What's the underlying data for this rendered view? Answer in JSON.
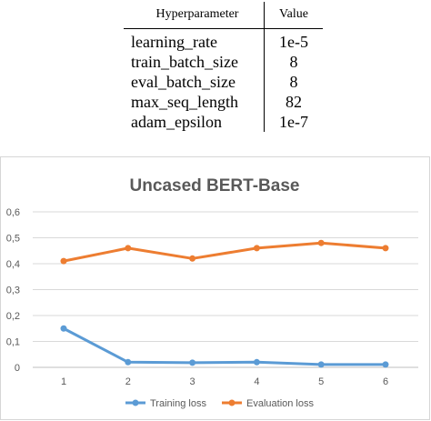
{
  "table": {
    "headers": [
      "Hyperparameter",
      "Value"
    ],
    "rows": [
      {
        "name": "learning_rate",
        "value": "1e-5"
      },
      {
        "name": "train_batch_size",
        "value": "8"
      },
      {
        "name": "eval_batch_size",
        "value": "8"
      },
      {
        "name": "max_seq_length",
        "value": "82"
      },
      {
        "name": "adam_epsilon",
        "value": "1e-7"
      }
    ]
  },
  "chart_data": {
    "type": "line",
    "title": "Uncased BERT-Base",
    "xlabel": "",
    "ylabel": "",
    "x": [
      1,
      2,
      3,
      4,
      5,
      6
    ],
    "x_tick_labels": [
      "1",
      "2",
      "3",
      "4",
      "5",
      "6"
    ],
    "y_tick_labels": [
      "0",
      "0,1",
      "0,2",
      "0,3",
      "0,4",
      "0,5",
      "0,6"
    ],
    "ylim": [
      0,
      0.6
    ],
    "grid": "horizontal",
    "legend_position": "bottom",
    "series": [
      {
        "name": "Training loss",
        "color": "#5b9bd5",
        "values": [
          0.15,
          0.02,
          0.018,
          0.02,
          0.011,
          0.011
        ]
      },
      {
        "name": "Evaluation loss",
        "color": "#ed7d31",
        "values": [
          0.41,
          0.46,
          0.42,
          0.46,
          0.48,
          0.46
        ]
      }
    ]
  }
}
